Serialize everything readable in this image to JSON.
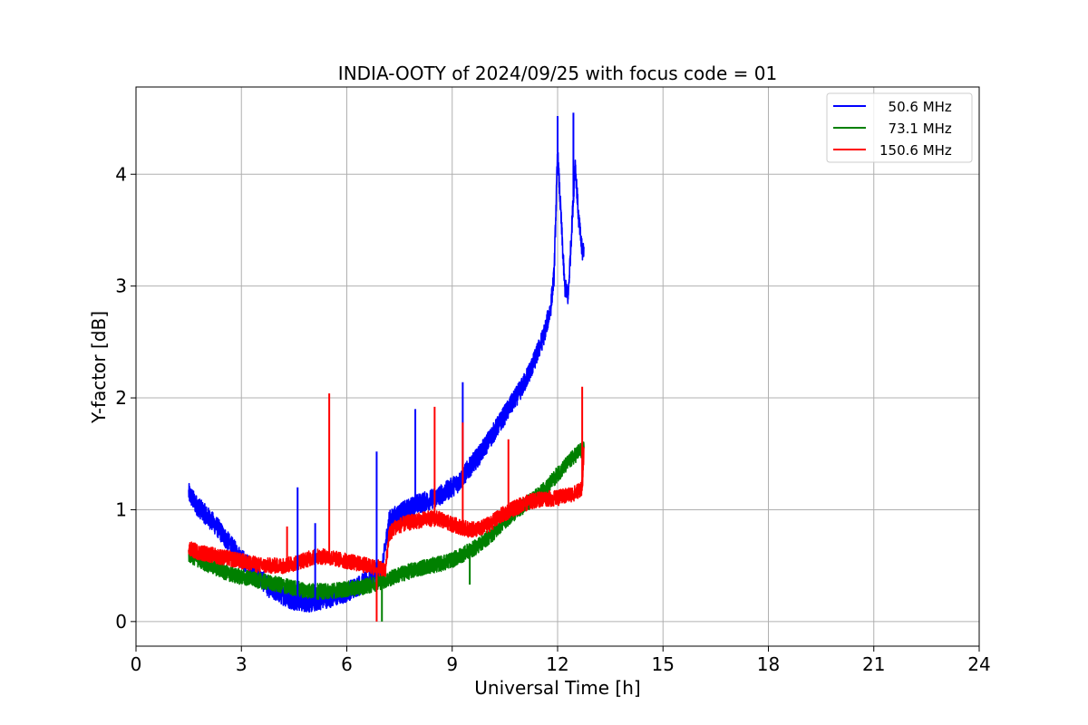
{
  "chart_data": {
    "type": "line",
    "title": "INDIA-OOTY of 2024/09/25 with focus code = 01",
    "xlabel": "Universal Time [h]",
    "ylabel": "Y-factor [dB]",
    "xlim": [
      0,
      24
    ],
    "ylim": [
      -0.22,
      4.78
    ],
    "xticks": [
      0,
      3,
      6,
      9,
      12,
      15,
      18,
      21,
      24
    ],
    "yticks": [
      0,
      1,
      2,
      3,
      4
    ],
    "grid": true,
    "legend_position": "top-right",
    "series": [
      {
        "name": "  50.6 MHz",
        "color": "#0000ff",
        "x": [
          1.5,
          1.7,
          2.0,
          2.3,
          2.6,
          2.9,
          3.2,
          3.5,
          3.8,
          4.1,
          4.4,
          4.7,
          5.0,
          5.3,
          5.6,
          5.9,
          6.2,
          6.5,
          6.8,
          7.0,
          7.2,
          7.4,
          7.7,
          8.0,
          8.3,
          8.6,
          8.9,
          9.2,
          9.5,
          9.8,
          10.1,
          10.4,
          10.7,
          11.0,
          11.3,
          11.6,
          11.8,
          11.9,
          12.0,
          12.1,
          12.2,
          12.3,
          12.4,
          12.5,
          12.6,
          12.7,
          12.75
        ],
        "y": [
          1.15,
          1.05,
          0.95,
          0.85,
          0.72,
          0.6,
          0.5,
          0.4,
          0.3,
          0.25,
          0.2,
          0.18,
          0.17,
          0.2,
          0.22,
          0.25,
          0.3,
          0.35,
          0.4,
          0.45,
          0.9,
          0.95,
          1.0,
          1.05,
          1.08,
          1.12,
          1.18,
          1.25,
          1.38,
          1.5,
          1.65,
          1.8,
          1.95,
          2.1,
          2.3,
          2.55,
          2.8,
          3.1,
          4.2,
          3.6,
          3.0,
          2.9,
          3.5,
          4.1,
          3.6,
          3.3,
          3.35
        ]
      },
      {
        "name": "  73.1 MHz",
        "color": "#008000",
        "x": [
          1.5,
          1.8,
          2.1,
          2.4,
          2.7,
          3.0,
          3.3,
          3.6,
          3.9,
          4.2,
          4.5,
          4.8,
          5.1,
          5.4,
          5.7,
          6.0,
          6.3,
          6.6,
          6.9,
          7.2,
          7.5,
          7.8,
          8.1,
          8.4,
          8.7,
          9.0,
          9.3,
          9.6,
          9.9,
          10.2,
          10.5,
          10.8,
          11.1,
          11.4,
          11.7,
          12.0,
          12.3,
          12.6,
          12.75
        ],
        "y": [
          0.6,
          0.55,
          0.5,
          0.46,
          0.42,
          0.4,
          0.38,
          0.36,
          0.34,
          0.32,
          0.3,
          0.28,
          0.27,
          0.27,
          0.28,
          0.29,
          0.3,
          0.32,
          0.35,
          0.38,
          0.42,
          0.45,
          0.48,
          0.5,
          0.52,
          0.55,
          0.6,
          0.65,
          0.72,
          0.8,
          0.9,
          0.98,
          1.05,
          1.12,
          1.2,
          1.32,
          1.42,
          1.52,
          1.55
        ]
      },
      {
        "name": "150.6 MHz",
        "color": "#ff0000",
        "x": [
          1.5,
          1.8,
          2.1,
          2.4,
          2.7,
          3.0,
          3.3,
          3.6,
          3.9,
          4.2,
          4.5,
          4.8,
          5.1,
          5.4,
          5.7,
          6.0,
          6.3,
          6.6,
          6.9,
          7.1,
          7.2,
          7.4,
          7.7,
          8.0,
          8.3,
          8.6,
          8.9,
          9.2,
          9.5,
          9.8,
          10.1,
          10.4,
          10.7,
          11.0,
          11.3,
          11.6,
          11.9,
          12.2,
          12.5,
          12.7,
          12.75
        ],
        "y": [
          0.65,
          0.62,
          0.6,
          0.58,
          0.56,
          0.54,
          0.52,
          0.5,
          0.5,
          0.5,
          0.52,
          0.55,
          0.58,
          0.58,
          0.56,
          0.54,
          0.52,
          0.5,
          0.48,
          0.45,
          0.78,
          0.85,
          0.88,
          0.9,
          0.92,
          0.92,
          0.88,
          0.85,
          0.82,
          0.83,
          0.88,
          0.95,
          1.0,
          1.05,
          1.08,
          1.1,
          1.1,
          1.12,
          1.15,
          1.2,
          1.55
        ]
      }
    ],
    "spikes": [
      {
        "series": 0,
        "x": 4.6,
        "y": 1.2
      },
      {
        "series": 0,
        "x": 5.1,
        "y": 0.88
      },
      {
        "series": 0,
        "x": 6.85,
        "y": 1.52
      },
      {
        "series": 0,
        "x": 7.95,
        "y": 1.9
      },
      {
        "series": 0,
        "x": 9.3,
        "y": 2.14
      },
      {
        "series": 0,
        "x": 12.0,
        "y": 4.52
      },
      {
        "series": 0,
        "x": 12.45,
        "y": 4.55
      },
      {
        "series": 2,
        "x": 4.3,
        "y": 0.85
      },
      {
        "series": 2,
        "x": 5.5,
        "y": 2.04
      },
      {
        "series": 2,
        "x": 6.85,
        "y": 0.0
      },
      {
        "series": 2,
        "x": 8.5,
        "y": 1.92
      },
      {
        "series": 2,
        "x": 9.3,
        "y": 1.78
      },
      {
        "series": 2,
        "x": 10.6,
        "y": 1.63
      },
      {
        "series": 2,
        "x": 12.7,
        "y": 2.1
      },
      {
        "series": 1,
        "x": 7.0,
        "y": 0.0
      },
      {
        "series": 1,
        "x": 9.5,
        "y": 0.33
      }
    ]
  }
}
